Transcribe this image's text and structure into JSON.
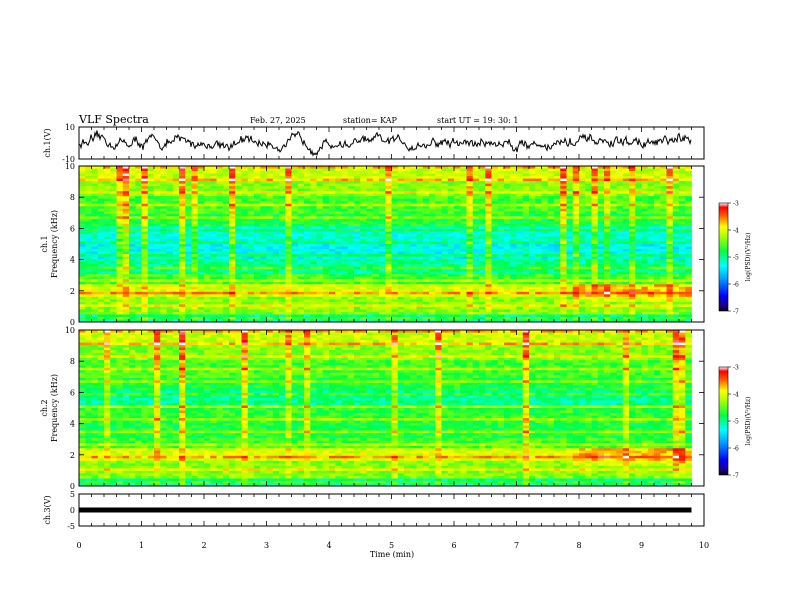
{
  "header": {
    "title": "VLF Spectra",
    "date": "Feb. 27, 2025",
    "station": "station= KAP",
    "start": "start  UT =   19: 30: 1"
  },
  "chart_data": [
    {
      "type": "line",
      "name": "waveform-ch1",
      "ylabel": "ch.1(V)",
      "ylim": [
        -10,
        10
      ],
      "yticks": [
        "10",
        "-10"
      ],
      "xlim": [
        0,
        10
      ],
      "note_series": "noisy waveform fluctuating around 0 V, mostly within -5 to +5 V"
    },
    {
      "type": "heatmap",
      "name": "spectrogram-ch1",
      "ylabel": "ch.1",
      "ylabel2": "Frequency (kHz)",
      "ylim": [
        0,
        10
      ],
      "yticks": [
        "0",
        "2",
        "4",
        "6",
        "8",
        "10"
      ],
      "xlim": [
        0,
        10
      ],
      "colorbar": {
        "label": "log(PSD)(V²/Hz)",
        "range": [
          -7,
          -3
        ],
        "ticks": [
          "-3",
          "-4",
          "-5",
          "-6",
          "-7"
        ]
      }
    },
    {
      "type": "heatmap",
      "name": "spectrogram-ch2",
      "ylabel": "ch.2",
      "ylabel2": "Frequency (kHz)",
      "ylim": [
        0,
        10
      ],
      "yticks": [
        "0",
        "2",
        "4",
        "6",
        "8",
        "10"
      ],
      "xlim": [
        0,
        10
      ],
      "colorbar": {
        "label": "log(PSD)(V²/Hz)",
        "range": [
          -7,
          -3
        ],
        "ticks": [
          "-3",
          "-4",
          "-5",
          "-6",
          "-7"
        ]
      }
    },
    {
      "type": "line",
      "name": "waveform-ch3",
      "ylabel": "ch.3(V)",
      "ylim": [
        -5,
        5
      ],
      "yticks": [
        "5",
        "0",
        "-5"
      ],
      "xlim": [
        0,
        10
      ],
      "xlabel": "Time  (min)",
      "xticks": [
        "0",
        "1",
        "2",
        "3",
        "4",
        "5",
        "6",
        "7",
        "8",
        "9",
        "10"
      ],
      "data_end_min": 9.8,
      "level_v": 0
    }
  ]
}
